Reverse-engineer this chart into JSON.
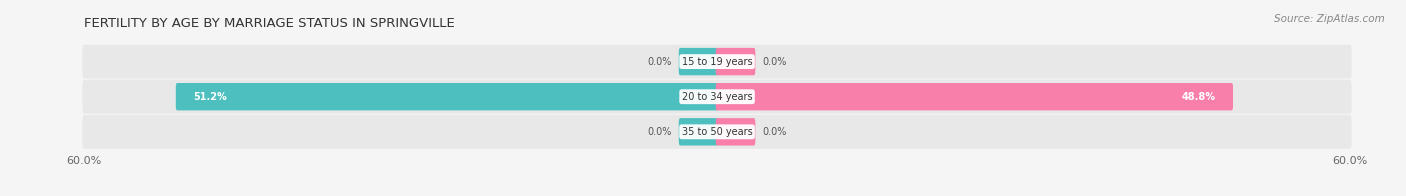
{
  "title": "FERTILITY BY AGE BY MARRIAGE STATUS IN SPRINGVILLE",
  "source": "Source: ZipAtlas.com",
  "categories": [
    "15 to 19 years",
    "20 to 34 years",
    "35 to 50 years"
  ],
  "married_values": [
    0.0,
    51.2,
    0.0
  ],
  "unmarried_values": [
    0.0,
    48.8,
    0.0
  ],
  "axis_max": 60.0,
  "married_color": "#4dbfbf",
  "unmarried_color": "#f77faa",
  "bar_bg_color": "#e8e8e8",
  "small_bar_width": 3.5,
  "bar_height": 0.52,
  "title_fontsize": 9.5,
  "label_fontsize": 8,
  "source_fontsize": 7.5,
  "axis_label_fontsize": 8,
  "category_fontsize": 7,
  "value_fontsize": 7,
  "background_color": "#f5f5f5",
  "bar_row_bg": "#e8e8e8"
}
